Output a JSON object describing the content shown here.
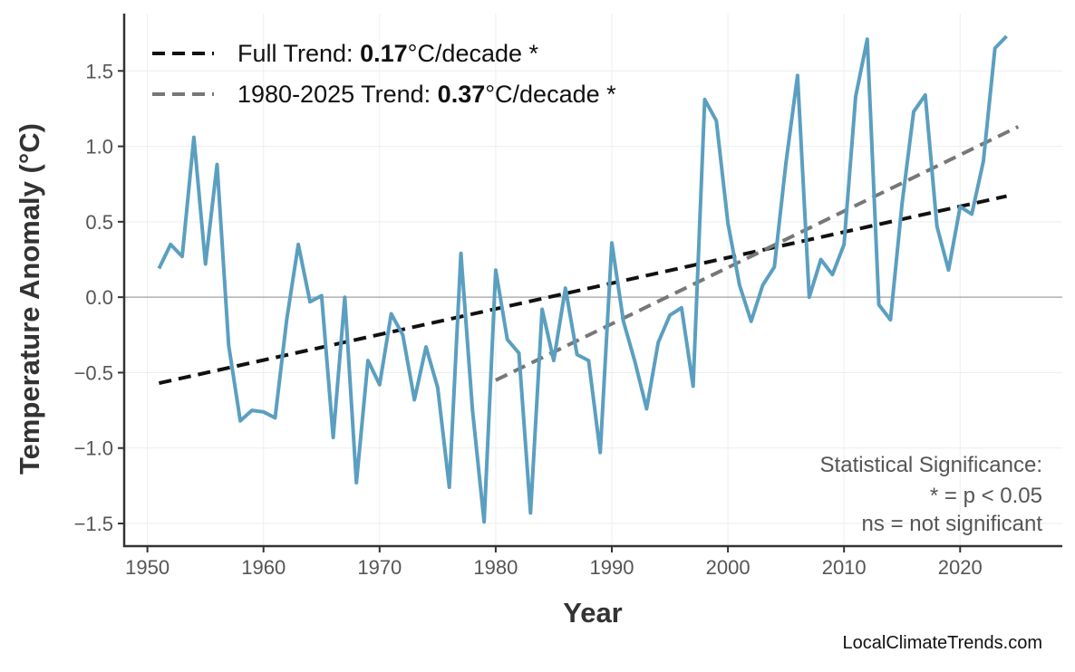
{
  "chart_data": {
    "type": "line",
    "xlabel": "Year",
    "ylabel": "Temperature Anomaly (°C)",
    "xlim": [
      1948,
      2028.8
    ],
    "ylim": [
      -1.65,
      1.88
    ],
    "xticks": [
      1950,
      1960,
      1970,
      1980,
      1990,
      2000,
      2010,
      2020
    ],
    "yticks": [
      -1.5,
      -1.0,
      -0.5,
      0.0,
      0.5,
      1.0,
      1.5
    ],
    "ytick_labels": [
      "−1.5",
      "−1.0",
      "−0.5",
      "0.0",
      "0.5",
      "1.0",
      "1.5"
    ],
    "grid": true,
    "zero_line": true,
    "series_color": "#5b9fc0",
    "x": [
      1951,
      1952,
      1953,
      1954,
      1955,
      1956,
      1957,
      1958,
      1959,
      1960,
      1961,
      1962,
      1963,
      1964,
      1965,
      1966,
      1967,
      1968,
      1969,
      1970,
      1971,
      1972,
      1973,
      1974,
      1975,
      1976,
      1977,
      1978,
      1979,
      1980,
      1981,
      1982,
      1983,
      1984,
      1985,
      1986,
      1987,
      1988,
      1989,
      1990,
      1991,
      1992,
      1993,
      1994,
      1995,
      1996,
      1997,
      1998,
      1999,
      2000,
      2001,
      2002,
      2003,
      2004,
      2005,
      2006,
      2007,
      2008,
      2009,
      2010,
      2011,
      2012,
      2013,
      2014,
      2015,
      2016,
      2017,
      2018,
      2019,
      2020,
      2021,
      2022,
      2023,
      2024
    ],
    "y": [
      0.19,
      0.35,
      0.27,
      1.06,
      0.22,
      0.88,
      -0.32,
      -0.82,
      -0.75,
      -0.76,
      -0.8,
      -0.15,
      0.35,
      -0.03,
      0.01,
      -0.93,
      0.0,
      -1.23,
      -0.42,
      -0.58,
      -0.11,
      -0.25,
      -0.68,
      -0.33,
      -0.6,
      -1.26,
      0.29,
      -0.75,
      -1.49,
      0.18,
      -0.28,
      -0.37,
      -1.43,
      -0.08,
      -0.42,
      0.06,
      -0.38,
      -0.42,
      -1.03,
      0.36,
      -0.16,
      -0.43,
      -0.74,
      -0.3,
      -0.12,
      -0.07,
      -0.59,
      1.31,
      1.17,
      0.49,
      0.08,
      -0.16,
      0.08,
      0.2,
      0.89,
      1.47,
      0.0,
      0.25,
      0.15,
      0.35,
      1.33,
      1.71,
      -0.05,
      -0.15,
      0.62,
      1.23,
      1.34,
      0.47,
      0.18,
      0.6,
      0.55,
      0.9,
      1.65,
      1.73
    ],
    "trends": [
      {
        "label_prefix": "Full Trend: ",
        "value": "0.17",
        "label_suffix": "°C/decade *",
        "x": [
          1951,
          2024
        ],
        "y": [
          -0.57,
          0.67
        ],
        "color": "#111111"
      },
      {
        "label_prefix": "1980-2025 Trend: ",
        "value": "0.37",
        "label_suffix": "°C/decade *",
        "x": [
          1980,
          2025
        ],
        "y": [
          -0.55,
          1.13
        ],
        "color": "#777777"
      }
    ],
    "legend_position": "top-left",
    "annotation": [
      "Statistical Significance:",
      "* = p < 0.05",
      "ns = not significant"
    ]
  },
  "watermark": "LocalClimateTrends.com"
}
